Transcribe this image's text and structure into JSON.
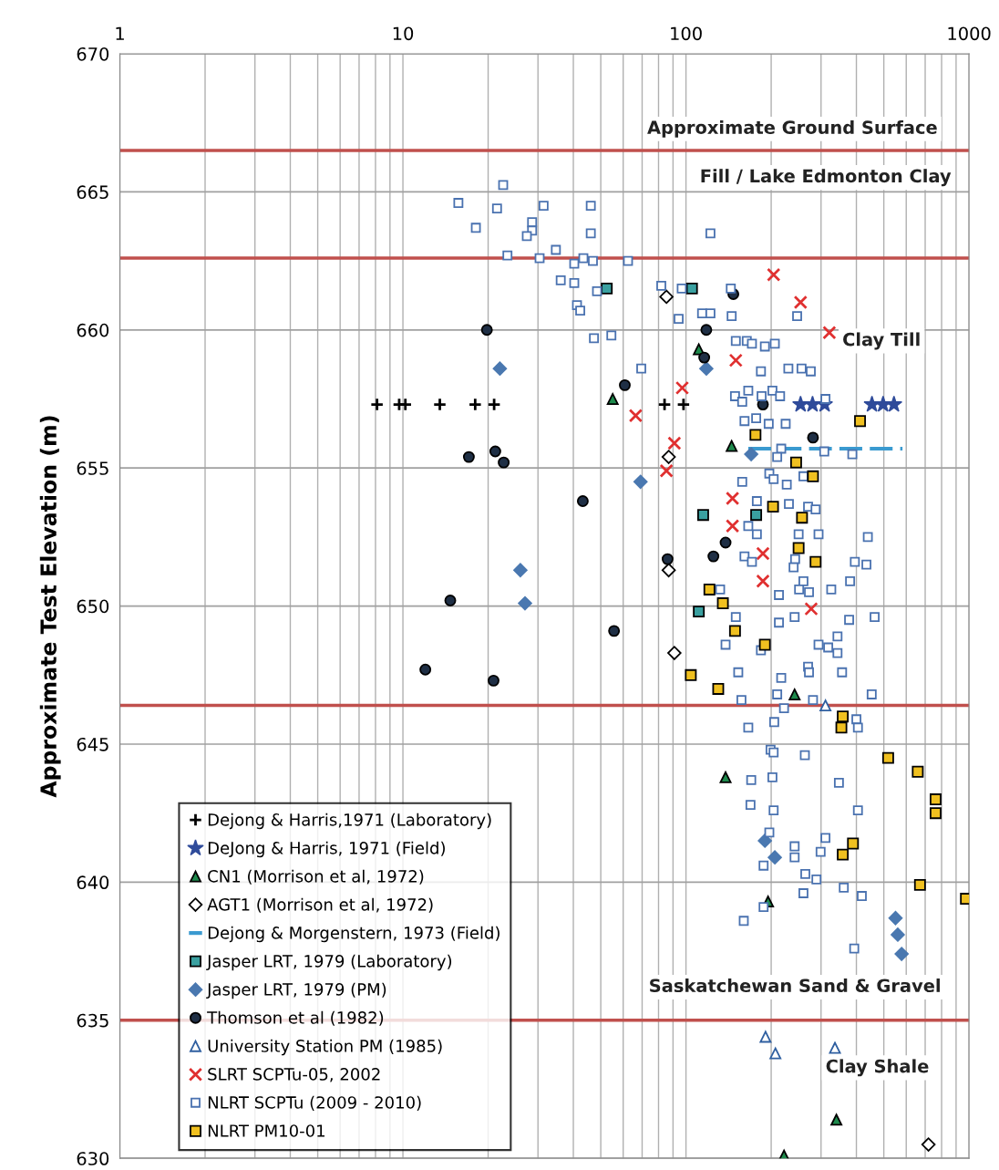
{
  "chart_data": {
    "type": "scatter",
    "ylabel": "Approximate Test Elevation (m)",
    "log": "x",
    "xlim": [
      1,
      1000
    ],
    "xticks": [
      1,
      10,
      100,
      1000
    ],
    "ylim": [
      630,
      670
    ],
    "yticks": [
      630,
      635,
      640,
      645,
      650,
      655,
      660,
      665,
      670
    ],
    "grid": true,
    "legend": "bottom left",
    "series": [
      {
        "name": "Dejong & Harris,1971 (Laboratory)",
        "marker": "plus",
        "color": "#000000",
        "x": [
          8.1,
          9.7,
          10.2,
          13.5,
          18,
          21,
          84,
          98
        ],
        "values": [
          657.3,
          657.3,
          657.3,
          657.3,
          657.3,
          657.3,
          657.3,
          657.3
        ]
      },
      {
        "name": "DeJong & Harris, 1971 (Field)",
        "marker": "star",
        "color": "#2f4b9a",
        "x": [
          254,
          280,
          309,
          454,
          497,
          543
        ],
        "values": [
          657.3,
          657.3,
          657.3,
          657.3,
          657.3,
          657.3
        ]
      },
      {
        "name": "CN1 (Morrison et al, 1972)",
        "marker": "triangle",
        "color": "#1e8a4c",
        "x": [
          111,
          55.1,
          145,
          242,
          138,
          195,
          340,
          222
        ],
        "values": [
          659.3,
          657.5,
          655.8,
          646.8,
          643.8,
          639.3,
          631.4,
          630.1
        ]
      },
      {
        "name": "AGT1 (Morrison et al, 1972)",
        "marker": "diamond",
        "color": "#000000",
        "x": [
          85.3,
          86.9,
          86.9,
          91,
          719
        ],
        "values": [
          661.2,
          655.4,
          651.3,
          648.3,
          630.5
        ]
      },
      {
        "name": "Dejong & Morgenstern, 1973 (Field)",
        "type": "line",
        "line_style": "dashed",
        "marker": "none",
        "color": "#3a9ad0",
        "x": [
          166,
          582
        ],
        "values": [
          655.7,
          655.7
        ]
      },
      {
        "name": "Jasper LRT, 1979 (Laboratory)",
        "marker": "square",
        "color": "#3aa0a0",
        "x": [
          52.5,
          105,
          115,
          177,
          111
        ],
        "values": [
          661.5,
          661.5,
          653.3,
          653.3,
          649.8
        ]
      },
      {
        "name": "Jasper LRT, 1979 (PM)",
        "marker": "diamond",
        "color": "#4a78b0",
        "x": [
          22,
          118,
          170,
          69.1,
          26,
          27,
          190,
          206,
          550,
          560,
          578
        ],
        "values": [
          658.6,
          658.6,
          655.5,
          654.5,
          651.3,
          650.1,
          641.5,
          640.9,
          638.7,
          638.1,
          637.4
        ]
      },
      {
        "name": "Thomson et al (1982)",
        "marker": "circle",
        "color": "#1f2f45",
        "x": [
          19.8,
          147,
          118,
          116,
          60.8,
          187,
          17.1,
          21.2,
          22.7,
          43.2,
          281,
          138,
          125,
          86.1,
          14.7,
          55.7,
          12,
          20.9
        ],
        "values": [
          660.0,
          661.3,
          660.0,
          659.0,
          658.0,
          657.3,
          655.4,
          655.6,
          655.2,
          653.8,
          656.1,
          652.3,
          651.8,
          651.7,
          650.2,
          649.1,
          647.7,
          647.3
        ]
      },
      {
        "name": "University Station PM (1985)",
        "marker": "triangle",
        "color": "#2f5fa0",
        "x": [
          311,
          191,
          207,
          336
        ],
        "values": [
          646.4,
          634.4,
          633.8,
          634.0
        ]
      },
      {
        "name": "SLRT SCPTu-05, 2002",
        "marker": "x",
        "color": "#e03030",
        "x": [
          204,
          254,
          321,
          150,
          97,
          66.4,
          91,
          85.3,
          146,
          146,
          187,
          187,
          277
        ],
        "values": [
          662.0,
          661.0,
          659.9,
          658.9,
          657.9,
          656.9,
          655.9,
          654.9,
          653.9,
          652.9,
          651.9,
          650.9,
          649.9
        ]
      },
      {
        "name": "NLRT SCPTu (2009 - 2010)",
        "marker": "square",
        "color": "#4a72b0",
        "x": [
          22.6,
          15.7,
          21.5,
          31.4,
          46.1,
          18.1,
          28.6,
          28.6,
          27.4,
          46.1,
          122,
          23.4,
          30.4,
          34.7,
          40.3,
          43.4,
          46.9,
          62.4,
          36.1,
          40.3,
          48.5,
          41.2,
          42.3,
          81.8,
          96.6,
          144,
          114,
          122,
          145,
          94.2,
          247,
          47.3,
          54.5,
          150,
          164,
          171,
          190,
          206,
          69.5,
          184,
          230,
          256,
          276,
          149,
          166,
          158,
          185,
          202,
          215,
          311,
          161,
          177,
          196,
          225,
          217,
          308,
          387,
          210,
          197,
          204,
          227,
          260,
          158,
          178,
          231,
          270,
          287,
          166,
          178,
          250,
          294,
          439,
          161,
          171,
          243,
          240,
          395,
          434,
          260,
          251,
          272,
          326,
          380,
          213,
          132,
          150,
          242,
          213,
          377,
          464,
          138,
          184,
          294,
          318,
          343,
          343,
          153,
          217,
          270,
          272,
          356,
          210,
          453,
          157,
          281,
          222,
          400,
          166,
          205,
          405,
          199,
          204,
          263,
          170,
          202,
          347,
          169,
          204,
          405,
          197,
          311,
          242,
          242,
          299,
          188,
          264,
          289,
          361,
          418,
          260,
          188,
          160,
          393
        ],
        "values": [
          665.25,
          664.6,
          664.4,
          664.5,
          664.5,
          663.7,
          663.9,
          663.6,
          663.4,
          663.5,
          663.5,
          662.7,
          662.6,
          662.9,
          662.4,
          662.6,
          662.5,
          662.5,
          661.8,
          661.7,
          661.4,
          660.9,
          660.7,
          661.6,
          661.5,
          661.5,
          660.6,
          660.6,
          660.5,
          660.4,
          660.5,
          659.7,
          659.8,
          659.6,
          659.6,
          659.5,
          659.4,
          659.5,
          658.6,
          658.5,
          658.6,
          658.6,
          658.5,
          657.6,
          657.8,
          657.4,
          657.6,
          657.8,
          657.6,
          657.5,
          656.7,
          656.8,
          656.6,
          656.6,
          655.7,
          655.6,
          655.5,
          655.4,
          654.8,
          654.6,
          654.4,
          654.7,
          654.5,
          653.8,
          653.7,
          653.6,
          653.5,
          652.9,
          652.6,
          652.6,
          652.6,
          652.5,
          651.8,
          651.6,
          651.7,
          651.4,
          651.6,
          651.5,
          650.9,
          650.6,
          650.5,
          650.6,
          650.9,
          650.4,
          650.6,
          649.6,
          649.6,
          649.4,
          649.5,
          649.6,
          648.6,
          648.4,
          648.6,
          648.5,
          648.9,
          648.3,
          647.6,
          647.4,
          647.8,
          647.6,
          647.6,
          646.8,
          646.8,
          646.6,
          646.6,
          646.3,
          645.9,
          645.6,
          645.8,
          645.6,
          644.8,
          644.7,
          644.6,
          643.7,
          643.8,
          643.6,
          642.8,
          642.6,
          642.6,
          641.8,
          641.6,
          641.3,
          640.9,
          641.1,
          640.6,
          640.3,
          640.1,
          639.8,
          639.5,
          639.6,
          639.1,
          638.6,
          637.6
        ]
      },
      {
        "name": "NLRT PM10-01",
        "marker": "square",
        "color": "#f0c020",
        "x": [
          412,
          176,
          245,
          281,
          203,
          257,
          250,
          287,
          121,
          135,
          149,
          190,
          104,
          130,
          358,
          354,
          518,
          659,
          762,
          762,
          389,
          358,
          671,
          975
        ],
        "values": [
          656.7,
          656.2,
          655.2,
          654.7,
          653.6,
          653.2,
          652.1,
          651.6,
          650.6,
          650.1,
          649.1,
          648.6,
          647.5,
          647.0,
          646.0,
          645.6,
          644.5,
          644.0,
          643.0,
          642.5,
          641.4,
          641.0,
          639.9,
          639.4
        ]
      }
    ],
    "ref_lines": [
      {
        "axis": "y",
        "value": 666.5,
        "color": "#c0504d"
      },
      {
        "axis": "y",
        "value": 662.6,
        "color": "#c0504d"
      },
      {
        "axis": "y",
        "value": 646.4,
        "color": "#c0504d"
      },
      {
        "axis": "y",
        "value": 635.0,
        "color": "#c0504d"
      }
    ],
    "annotations": [
      "Approximate Ground Surface",
      "Fill / Lake Edmonton Clay",
      "Clay Till",
      "Saskatchewan Sand & Gravel",
      "Clay Shale"
    ]
  }
}
